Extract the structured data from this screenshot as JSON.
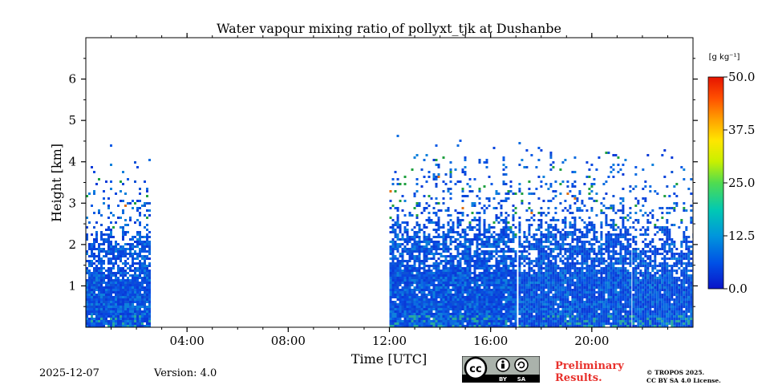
{
  "chart_data": {
    "type": "heatmap",
    "title": "Water vapour mixing ratio of pollyxt_tjk at Dushanbe",
    "xlabel": "Time [UTC]",
    "ylabel": "Height [km]",
    "xlim": [
      0,
      24
    ],
    "ylim": [
      0,
      7
    ],
    "x_ticks": [
      {
        "value": 4,
        "label": "04:00"
      },
      {
        "value": 8,
        "label": "08:00"
      },
      {
        "value": 12,
        "label": "12:00"
      },
      {
        "value": 16,
        "label": "16:00"
      },
      {
        "value": 20,
        "label": "20:00"
      }
    ],
    "y_ticks": [
      {
        "value": 1,
        "label": "1"
      },
      {
        "value": 2,
        "label": "2"
      },
      {
        "value": 3,
        "label": "3"
      },
      {
        "value": 4,
        "label": "4"
      },
      {
        "value": 5,
        "label": "5"
      },
      {
        "value": 6,
        "label": "6"
      }
    ],
    "colorbar": {
      "unit_label": "[g kg⁻¹]",
      "range": [
        0,
        50
      ],
      "ticks": [
        {
          "value": 0,
          "label": "0.0"
        },
        {
          "value": 12.5,
          "label": "12.5"
        },
        {
          "value": 25,
          "label": "25.0"
        },
        {
          "value": 37.5,
          "label": "37.5"
        },
        {
          "value": 50,
          "label": "50.0"
        }
      ],
      "colors": [
        "#0a14c8",
        "#0050e6",
        "#0096dc",
        "#00c8b4",
        "#50dc50",
        "#c8f000",
        "#ffe600",
        "#ffa000",
        "#ff5000",
        "#e61400"
      ]
    },
    "data_segments": [
      {
        "start": 0.0,
        "end": 2.5,
        "top_km": 2.3
      },
      {
        "start": 12.0,
        "end": 17.0,
        "top_km": 2.5
      },
      {
        "start": 17.1,
        "end": 21.5,
        "top_km": 2.4
      },
      {
        "start": 21.6,
        "end": 24.0,
        "top_km": 2.2
      }
    ],
    "typical_value": 3
  },
  "footer": {
    "date": "2025-12-07",
    "version": "Version: 4.0",
    "preliminary_line1": "Preliminary",
    "preliminary_line2": "Results.",
    "copyright_line1": "© TROPOS 2025.",
    "copyright_line2": "CC BY SA 4.0 License.",
    "license_badge": {
      "cc": "cc",
      "by": "BY",
      "sa": "SA"
    }
  }
}
